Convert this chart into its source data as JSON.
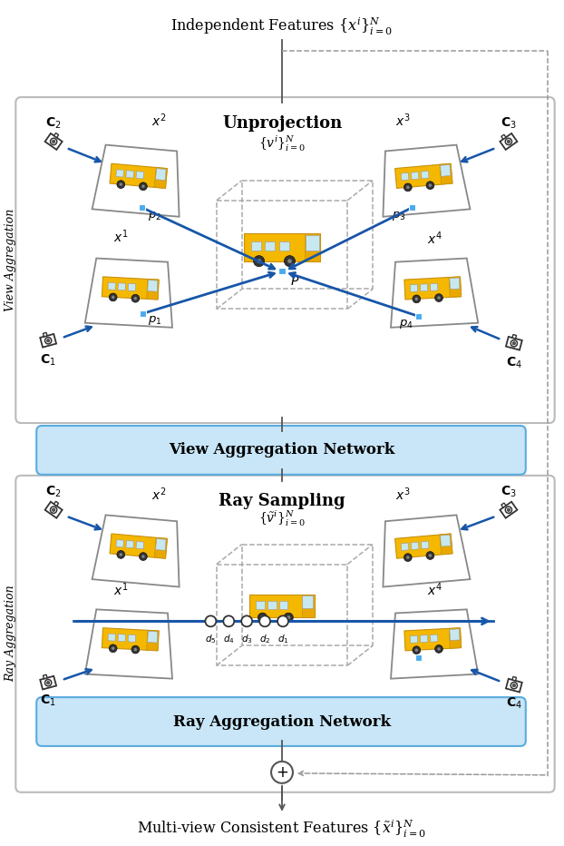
{
  "title_top": "Independent Features $\\{x^i\\}_{i=0}^{N}$",
  "title_bottom": "Multi-view Consistent Features $\\{\\tilde{x}^i\\}_{i=0}^{N}$",
  "view_agg_section_title": "Unprojection",
  "view_agg_label": "$\\{v^i\\}_{i=0}^{N}$",
  "ray_section_title": "Ray Sampling",
  "ray_label": "$\\{\\tilde{v}^i\\}_{i=0}^{N}$",
  "van_network_label": "View Aggregation Network",
  "ray_network_label": "Ray Aggregation Network",
  "side_label_top": "View Aggregation",
  "side_label_bottom": "Ray Aggregation",
  "arrow_color": "#1756a9",
  "dashed_color": "#999999",
  "main_border": "#aaaaaa",
  "network_box_bg": "#c8e6f8",
  "network_box_border": "#5aabdf"
}
